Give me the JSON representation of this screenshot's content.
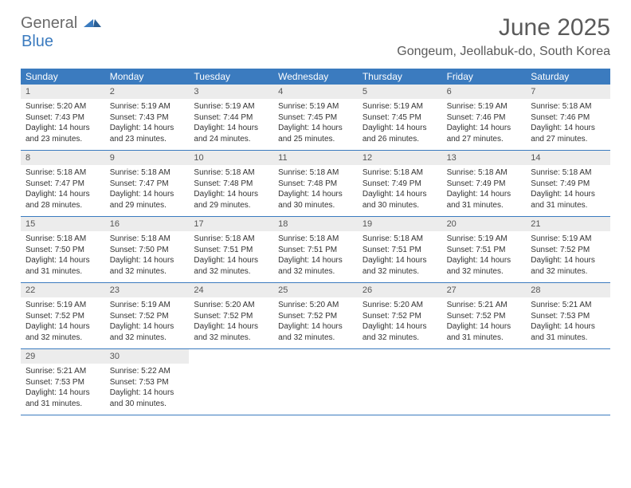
{
  "logo": {
    "text1": "General",
    "text2": "Blue"
  },
  "title": "June 2025",
  "location": "Gongeum, Jeollabuk-do, South Korea",
  "colors": {
    "header_bar": "#3b7bbf",
    "daynum_bg": "#ececec",
    "week_border": "#3b7bbf",
    "text": "#333333",
    "title_text": "#5a5a5a"
  },
  "day_labels": [
    "Sunday",
    "Monday",
    "Tuesday",
    "Wednesday",
    "Thursday",
    "Friday",
    "Saturday"
  ],
  "weeks": [
    [
      {
        "n": "1",
        "sr": "Sunrise: 5:20 AM",
        "ss": "Sunset: 7:43 PM",
        "d1": "Daylight: 14 hours",
        "d2": "and 23 minutes."
      },
      {
        "n": "2",
        "sr": "Sunrise: 5:19 AM",
        "ss": "Sunset: 7:43 PM",
        "d1": "Daylight: 14 hours",
        "d2": "and 23 minutes."
      },
      {
        "n": "3",
        "sr": "Sunrise: 5:19 AM",
        "ss": "Sunset: 7:44 PM",
        "d1": "Daylight: 14 hours",
        "d2": "and 24 minutes."
      },
      {
        "n": "4",
        "sr": "Sunrise: 5:19 AM",
        "ss": "Sunset: 7:45 PM",
        "d1": "Daylight: 14 hours",
        "d2": "and 25 minutes."
      },
      {
        "n": "5",
        "sr": "Sunrise: 5:19 AM",
        "ss": "Sunset: 7:45 PM",
        "d1": "Daylight: 14 hours",
        "d2": "and 26 minutes."
      },
      {
        "n": "6",
        "sr": "Sunrise: 5:19 AM",
        "ss": "Sunset: 7:46 PM",
        "d1": "Daylight: 14 hours",
        "d2": "and 27 minutes."
      },
      {
        "n": "7",
        "sr": "Sunrise: 5:18 AM",
        "ss": "Sunset: 7:46 PM",
        "d1": "Daylight: 14 hours",
        "d2": "and 27 minutes."
      }
    ],
    [
      {
        "n": "8",
        "sr": "Sunrise: 5:18 AM",
        "ss": "Sunset: 7:47 PM",
        "d1": "Daylight: 14 hours",
        "d2": "and 28 minutes."
      },
      {
        "n": "9",
        "sr": "Sunrise: 5:18 AM",
        "ss": "Sunset: 7:47 PM",
        "d1": "Daylight: 14 hours",
        "d2": "and 29 minutes."
      },
      {
        "n": "10",
        "sr": "Sunrise: 5:18 AM",
        "ss": "Sunset: 7:48 PM",
        "d1": "Daylight: 14 hours",
        "d2": "and 29 minutes."
      },
      {
        "n": "11",
        "sr": "Sunrise: 5:18 AM",
        "ss": "Sunset: 7:48 PM",
        "d1": "Daylight: 14 hours",
        "d2": "and 30 minutes."
      },
      {
        "n": "12",
        "sr": "Sunrise: 5:18 AM",
        "ss": "Sunset: 7:49 PM",
        "d1": "Daylight: 14 hours",
        "d2": "and 30 minutes."
      },
      {
        "n": "13",
        "sr": "Sunrise: 5:18 AM",
        "ss": "Sunset: 7:49 PM",
        "d1": "Daylight: 14 hours",
        "d2": "and 31 minutes."
      },
      {
        "n": "14",
        "sr": "Sunrise: 5:18 AM",
        "ss": "Sunset: 7:49 PM",
        "d1": "Daylight: 14 hours",
        "d2": "and 31 minutes."
      }
    ],
    [
      {
        "n": "15",
        "sr": "Sunrise: 5:18 AM",
        "ss": "Sunset: 7:50 PM",
        "d1": "Daylight: 14 hours",
        "d2": "and 31 minutes."
      },
      {
        "n": "16",
        "sr": "Sunrise: 5:18 AM",
        "ss": "Sunset: 7:50 PM",
        "d1": "Daylight: 14 hours",
        "d2": "and 32 minutes."
      },
      {
        "n": "17",
        "sr": "Sunrise: 5:18 AM",
        "ss": "Sunset: 7:51 PM",
        "d1": "Daylight: 14 hours",
        "d2": "and 32 minutes."
      },
      {
        "n": "18",
        "sr": "Sunrise: 5:18 AM",
        "ss": "Sunset: 7:51 PM",
        "d1": "Daylight: 14 hours",
        "d2": "and 32 minutes."
      },
      {
        "n": "19",
        "sr": "Sunrise: 5:18 AM",
        "ss": "Sunset: 7:51 PM",
        "d1": "Daylight: 14 hours",
        "d2": "and 32 minutes."
      },
      {
        "n": "20",
        "sr": "Sunrise: 5:19 AM",
        "ss": "Sunset: 7:51 PM",
        "d1": "Daylight: 14 hours",
        "d2": "and 32 minutes."
      },
      {
        "n": "21",
        "sr": "Sunrise: 5:19 AM",
        "ss": "Sunset: 7:52 PM",
        "d1": "Daylight: 14 hours",
        "d2": "and 32 minutes."
      }
    ],
    [
      {
        "n": "22",
        "sr": "Sunrise: 5:19 AM",
        "ss": "Sunset: 7:52 PM",
        "d1": "Daylight: 14 hours",
        "d2": "and 32 minutes."
      },
      {
        "n": "23",
        "sr": "Sunrise: 5:19 AM",
        "ss": "Sunset: 7:52 PM",
        "d1": "Daylight: 14 hours",
        "d2": "and 32 minutes."
      },
      {
        "n": "24",
        "sr": "Sunrise: 5:20 AM",
        "ss": "Sunset: 7:52 PM",
        "d1": "Daylight: 14 hours",
        "d2": "and 32 minutes."
      },
      {
        "n": "25",
        "sr": "Sunrise: 5:20 AM",
        "ss": "Sunset: 7:52 PM",
        "d1": "Daylight: 14 hours",
        "d2": "and 32 minutes."
      },
      {
        "n": "26",
        "sr": "Sunrise: 5:20 AM",
        "ss": "Sunset: 7:52 PM",
        "d1": "Daylight: 14 hours",
        "d2": "and 32 minutes."
      },
      {
        "n": "27",
        "sr": "Sunrise: 5:21 AM",
        "ss": "Sunset: 7:52 PM",
        "d1": "Daylight: 14 hours",
        "d2": "and 31 minutes."
      },
      {
        "n": "28",
        "sr": "Sunrise: 5:21 AM",
        "ss": "Sunset: 7:53 PM",
        "d1": "Daylight: 14 hours",
        "d2": "and 31 minutes."
      }
    ],
    [
      {
        "n": "29",
        "sr": "Sunrise: 5:21 AM",
        "ss": "Sunset: 7:53 PM",
        "d1": "Daylight: 14 hours",
        "d2": "and 31 minutes."
      },
      {
        "n": "30",
        "sr": "Sunrise: 5:22 AM",
        "ss": "Sunset: 7:53 PM",
        "d1": "Daylight: 14 hours",
        "d2": "and 30 minutes."
      },
      null,
      null,
      null,
      null,
      null
    ]
  ]
}
